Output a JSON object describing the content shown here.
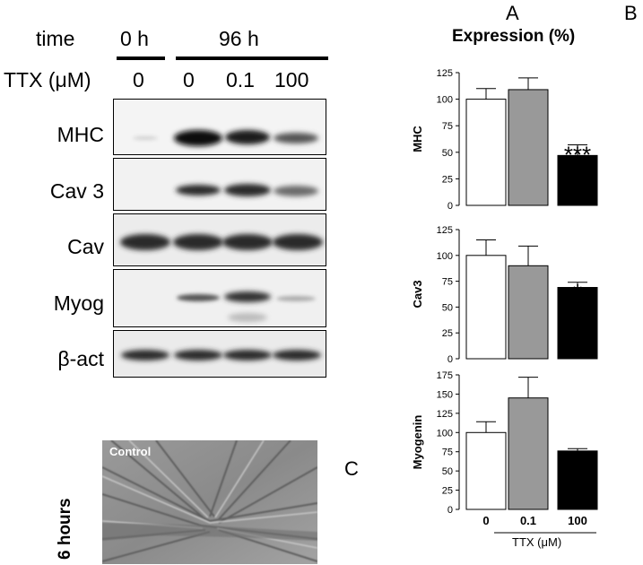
{
  "panels": {
    "a": "A",
    "b": "B",
    "c": "C"
  },
  "blot": {
    "time_label": "time",
    "time_0h": "0 h",
    "time_96h": "96 h",
    "ttx_label": "TTX (μM)",
    "lanes": [
      "0",
      "0",
      "0.1",
      "100"
    ],
    "rows": [
      {
        "name": "MHC"
      },
      {
        "name": "Cav 3"
      },
      {
        "name": "Cav"
      },
      {
        "name": "Myog"
      },
      {
        "name": "β-act"
      }
    ]
  },
  "micrograph": {
    "caption": "Control",
    "side_label": "6 hours"
  },
  "chart_data": [
    {
      "type": "bar",
      "title": "Expression (%)",
      "ylabel": "MHC",
      "categories": [
        "0",
        "0.1",
        "100"
      ],
      "values": [
        100,
        109,
        47
      ],
      "errors": [
        10,
        11,
        10
      ],
      "ylim": [
        0,
        125
      ],
      "yticks": [
        0,
        25,
        50,
        75,
        100,
        125
      ],
      "significance": [
        "",
        "",
        "***"
      ],
      "colors": [
        "#ffffff",
        "#999999",
        "#000000"
      ],
      "xlabel": ""
    },
    {
      "type": "bar",
      "ylabel": "Cav3",
      "categories": [
        "0",
        "0.1",
        "100"
      ],
      "values": [
        100,
        90,
        69
      ],
      "errors": [
        15,
        19,
        5
      ],
      "ylim": [
        0,
        125
      ],
      "yticks": [
        0,
        25,
        50,
        75,
        100,
        125
      ],
      "significance": [
        "",
        "",
        "*"
      ],
      "colors": [
        "#ffffff",
        "#999999",
        "#000000"
      ],
      "xlabel": ""
    },
    {
      "type": "bar",
      "ylabel": "Myogenin",
      "categories": [
        "0",
        "0.1",
        "100"
      ],
      "values": [
        100,
        145,
        76
      ],
      "errors": [
        14,
        27,
        3
      ],
      "ylim": [
        0,
        175
      ],
      "yticks": [
        0,
        25,
        50,
        75,
        100,
        125,
        150,
        175
      ],
      "significance": [
        "",
        "",
        "*"
      ],
      "colors": [
        "#ffffff",
        "#999999",
        "#000000"
      ],
      "xlabel": "TTX (μM)"
    }
  ]
}
